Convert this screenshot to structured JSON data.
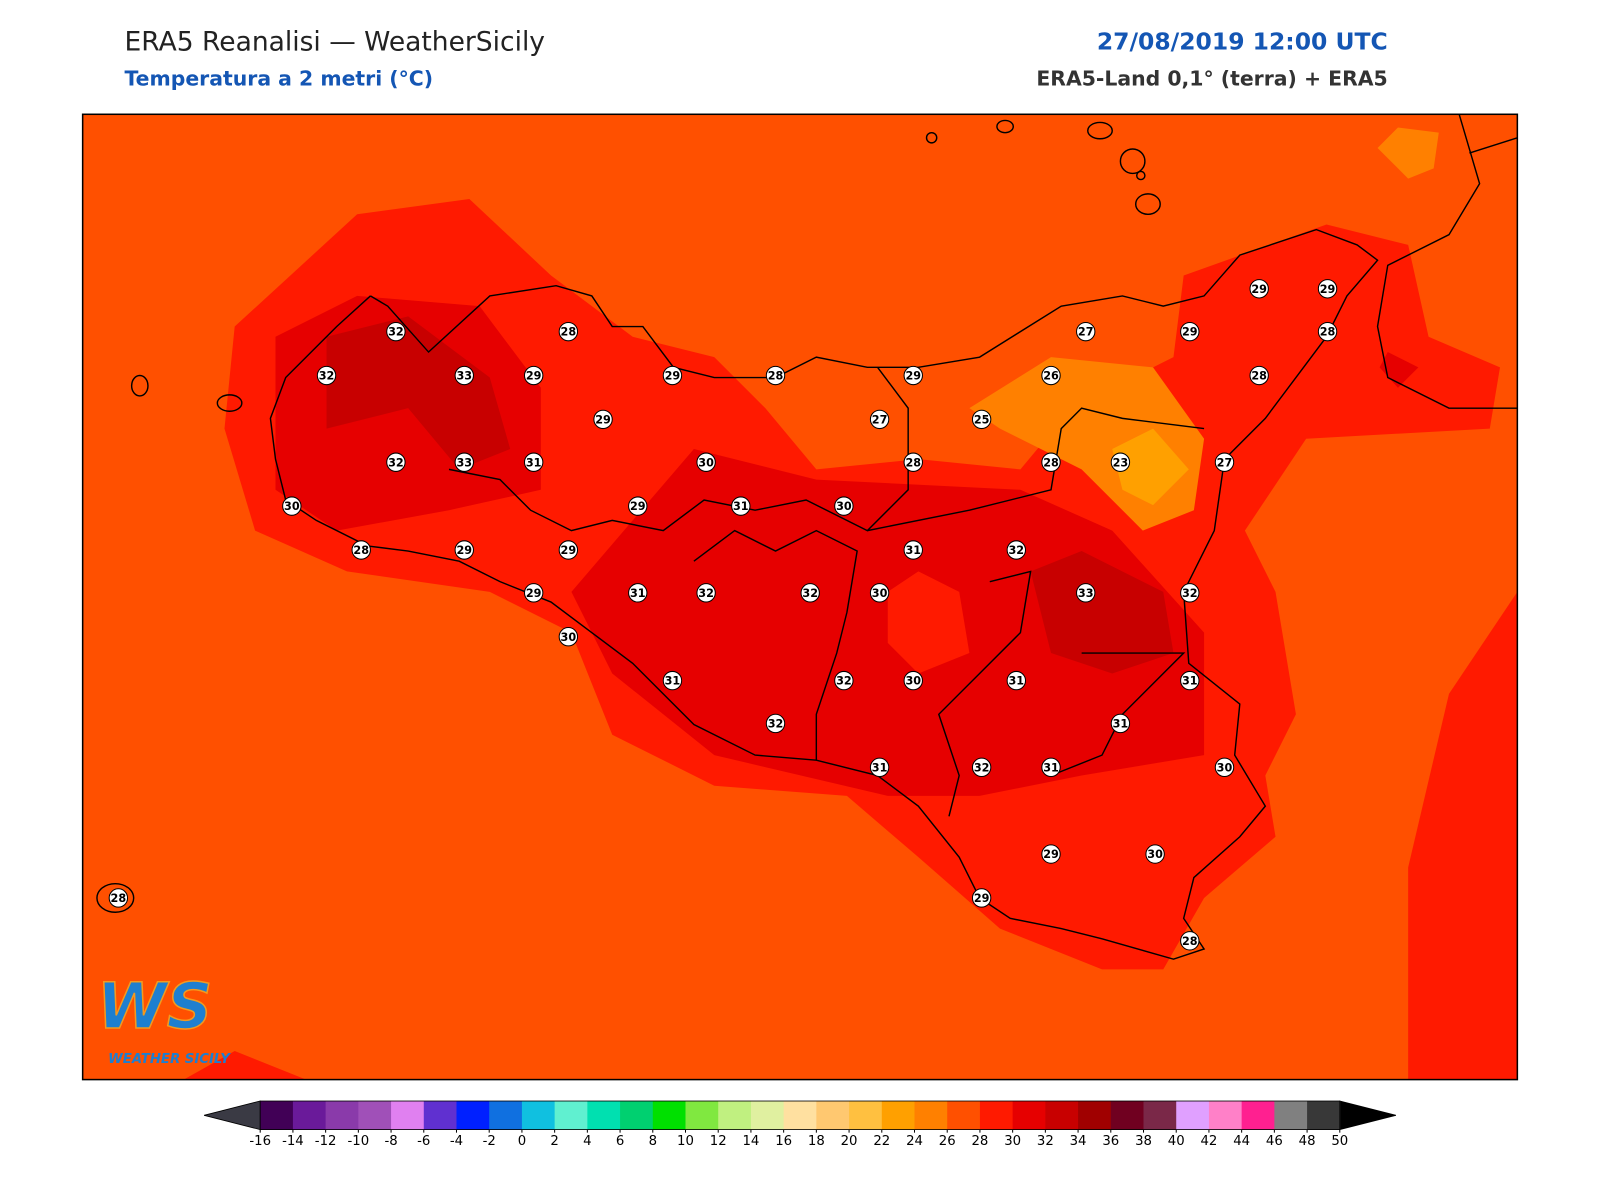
{
  "header": {
    "title": "ERA5 Reanalisi — WeatherSicily",
    "subtitle": "Temperatura a 2 metri (°C)",
    "datetime": "27/08/2019 12:00 UTC",
    "source": "ERA5-Land 0,1° (terra) + ERA5"
  },
  "stations": [
    29,
    29,
    32,
    28,
    27,
    29,
    28,
    32,
    33,
    29,
    29,
    28,
    29,
    26,
    28,
    29,
    27,
    25,
    32,
    33,
    31,
    30,
    28,
    28,
    23,
    27,
    30,
    29,
    31,
    30,
    28,
    29,
    29,
    31,
    32,
    29,
    31,
    32,
    32,
    30,
    33,
    32,
    30,
    31,
    32,
    30,
    31,
    31,
    32,
    31,
    31,
    32,
    31,
    30,
    29,
    30,
    28,
    29,
    28
  ],
  "colorbar": {
    "ticks": [
      -16,
      -14,
      -12,
      -10,
      -8,
      -6,
      -4,
      -2,
      0,
      2,
      4,
      6,
      8,
      10,
      12,
      14,
      16,
      18,
      20,
      22,
      24,
      26,
      28,
      30,
      32,
      34,
      36,
      38,
      40,
      42,
      44,
      46,
      48,
      50
    ],
    "colors": [
      "#410056",
      "#6a1a9a",
      "#8a3aaa",
      "#a050b8",
      "#e080f0",
      "#6030d0",
      "#0020ff",
      "#1070e0",
      "#10c0e0",
      "#60f0d0",
      "#00e0b0",
      "#00d070",
      "#00e000",
      "#80e840",
      "#c0f080",
      "#e0f0a0",
      "#ffe0a0",
      "#ffc870",
      "#ffc040",
      "#ffa000",
      "#ff8000",
      "#ff5000",
      "#ff1a00",
      "#e60000",
      "#c80000",
      "#a00000",
      "#700020",
      "#7a2848",
      "#e0a0ff",
      "#ff80c8",
      "#ff2090",
      "#808080",
      "#383838"
    ]
  },
  "logo": {
    "letters": "WS",
    "name": "WEATHER SICILY"
  }
}
